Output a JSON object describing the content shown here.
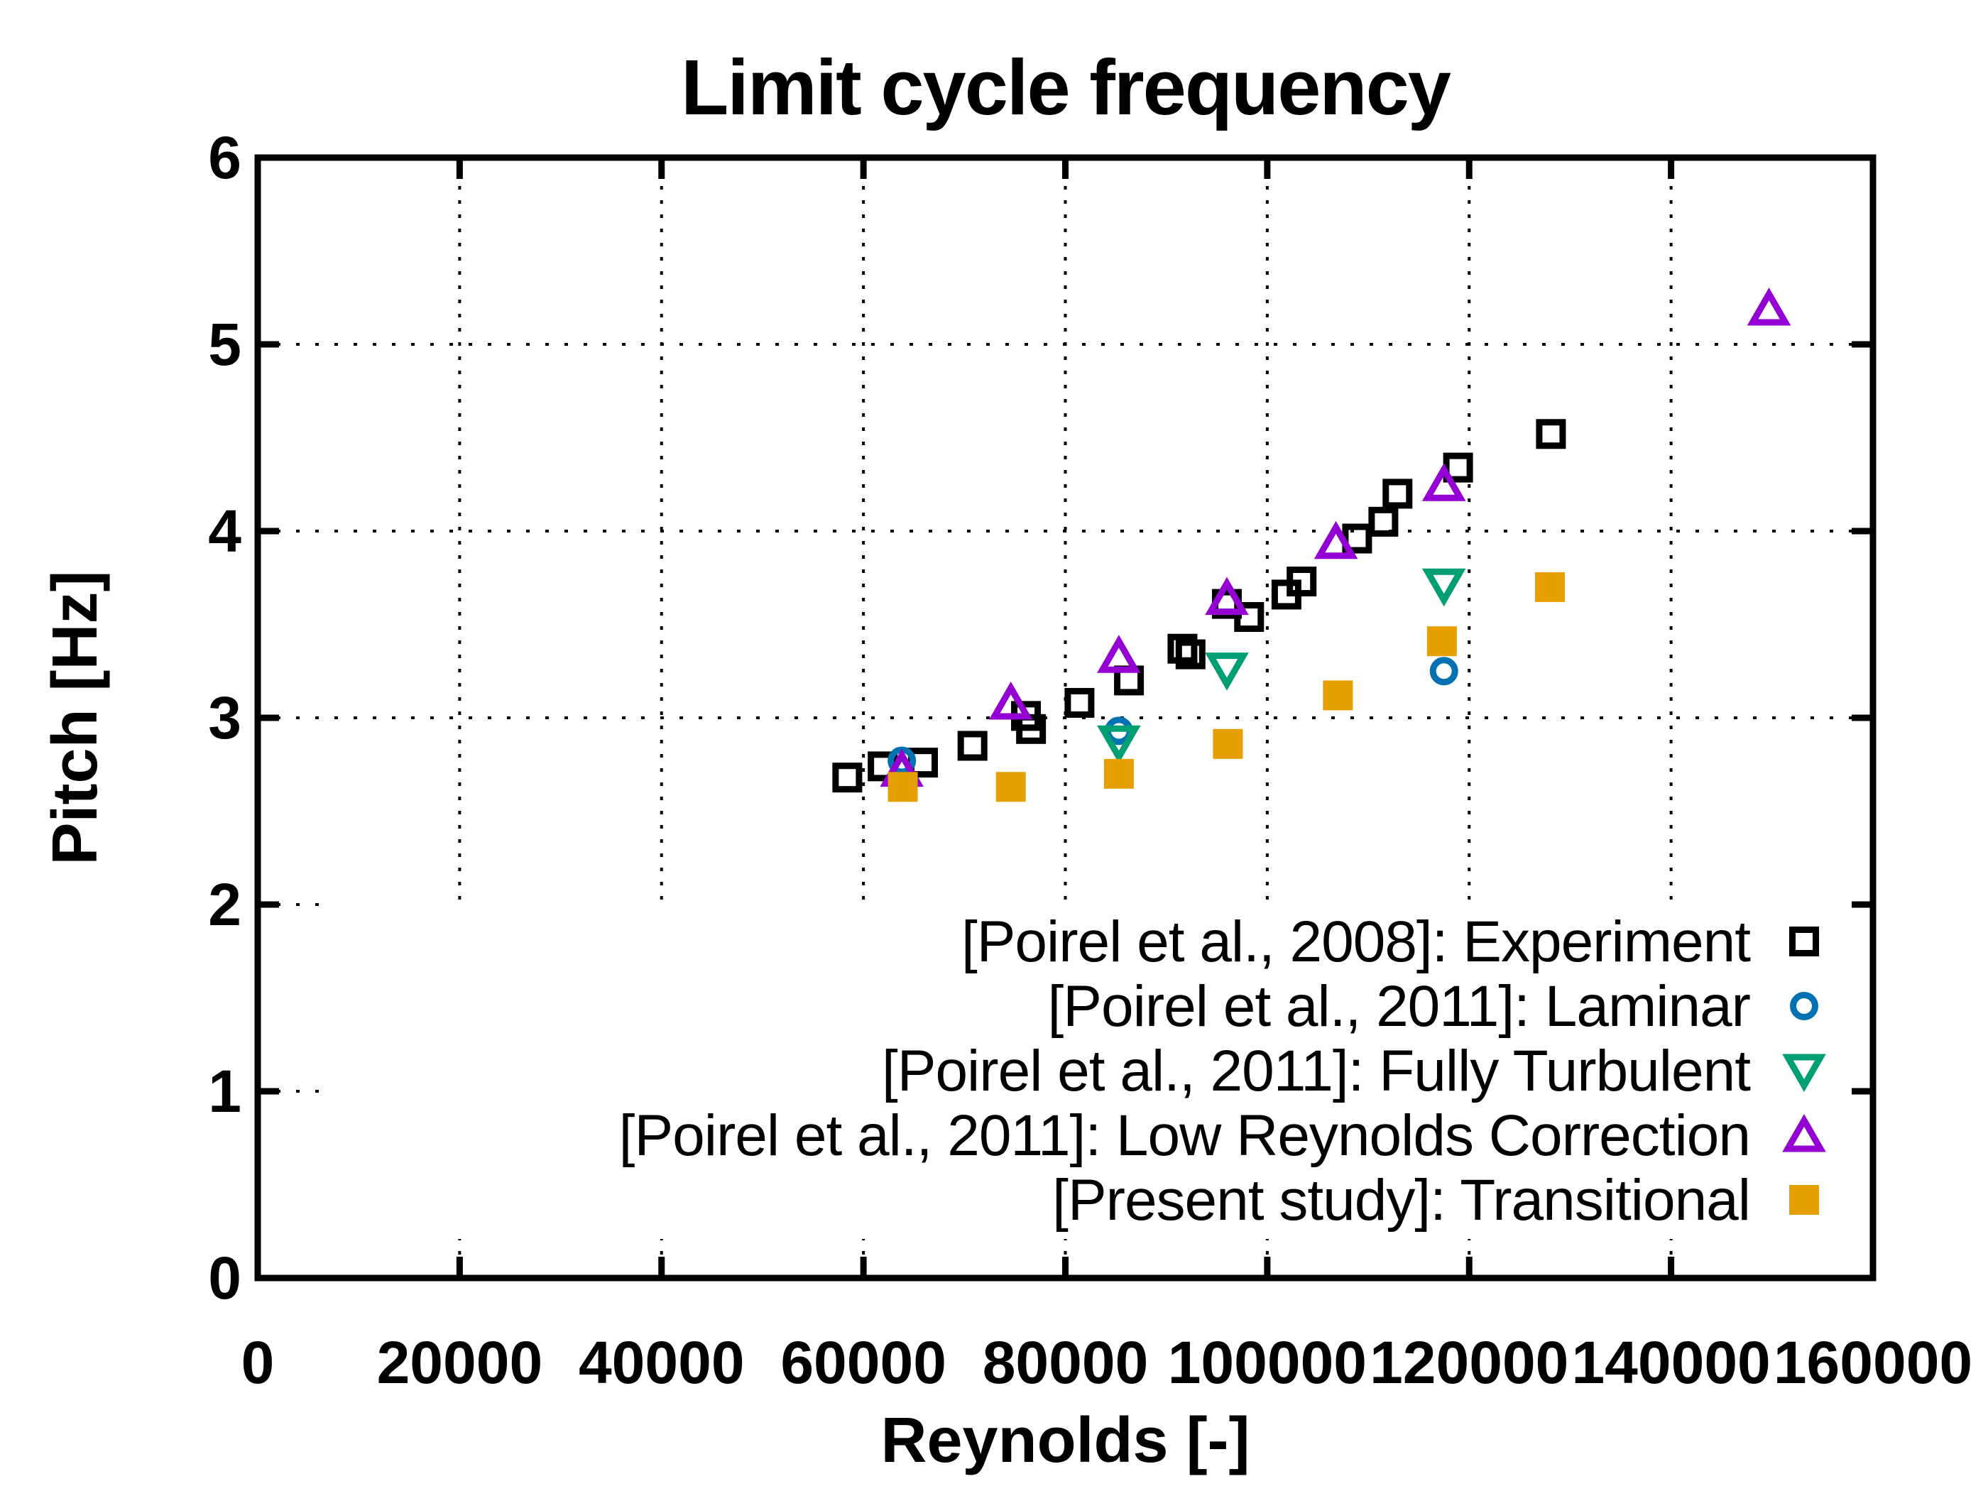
{
  "chart_data": {
    "type": "scatter",
    "title": "Limit cycle frequency",
    "xlabel": "Reynolds [-]",
    "ylabel": "Pitch [Hz]",
    "xlim": [
      0,
      160000
    ],
    "ylim": [
      0,
      6
    ],
    "xticks": [
      0,
      20000,
      40000,
      60000,
      80000,
      100000,
      120000,
      140000,
      160000
    ],
    "yticks": [
      0,
      1,
      2,
      3,
      4,
      5,
      6
    ],
    "grid": true,
    "grid_style": "dotted",
    "legend_position": "inside-bottom-right",
    "background_color": "#ffffff",
    "axis_color": "#000000",
    "series": [
      {
        "name": "[Poirel et al., 2008]: Experiment",
        "marker": "open-square",
        "color": "#000000",
        "points": [
          [
            58400,
            2.68
          ],
          [
            61900,
            2.74
          ],
          [
            65900,
            2.76
          ],
          [
            70800,
            2.85
          ],
          [
            76100,
            3.01
          ],
          [
            76600,
            2.94
          ],
          [
            81400,
            3.08
          ],
          [
            86300,
            3.2
          ],
          [
            91600,
            3.37
          ],
          [
            92400,
            3.34
          ],
          [
            96000,
            3.61
          ],
          [
            98200,
            3.54
          ],
          [
            101900,
            3.66
          ],
          [
            103400,
            3.73
          ],
          [
            108900,
            3.96
          ],
          [
            111500,
            4.05
          ],
          [
            112900,
            4.2
          ],
          [
            118900,
            4.34
          ],
          [
            128100,
            4.52
          ]
        ]
      },
      {
        "name": "[Poirel et al., 2011]: Laminar",
        "marker": "open-circle",
        "color": "#0072B2",
        "points": [
          [
            63800,
            2.77
          ],
          [
            85300,
            2.93
          ],
          [
            117500,
            3.25
          ]
        ]
      },
      {
        "name": "[Poirel et al., 2011]: Fully Turbulent",
        "marker": "open-triangle-down",
        "color": "#009E73",
        "points": [
          [
            85300,
            2.87
          ],
          [
            96000,
            3.26
          ],
          [
            117500,
            3.71
          ]
        ]
      },
      {
        "name": "[Poirel et al., 2011]: Low Reynolds Correction",
        "marker": "open-triangle-up",
        "color": "#9400D3",
        "points": [
          [
            63800,
            2.72
          ],
          [
            74600,
            3.08
          ],
          [
            85300,
            3.33
          ],
          [
            96000,
            3.64
          ],
          [
            106800,
            3.94
          ],
          [
            117500,
            4.25
          ],
          [
            149700,
            5.19
          ]
        ]
      },
      {
        "name": "[Present study]: Transitional",
        "marker": "filled-square",
        "color": "#E69F00",
        "points": [
          [
            63900,
            2.63
          ],
          [
            74600,
            2.63
          ],
          [
            85300,
            2.7
          ],
          [
            96100,
            2.86
          ],
          [
            107000,
            3.12
          ],
          [
            117300,
            3.41
          ],
          [
            128000,
            3.7
          ]
        ]
      }
    ]
  }
}
